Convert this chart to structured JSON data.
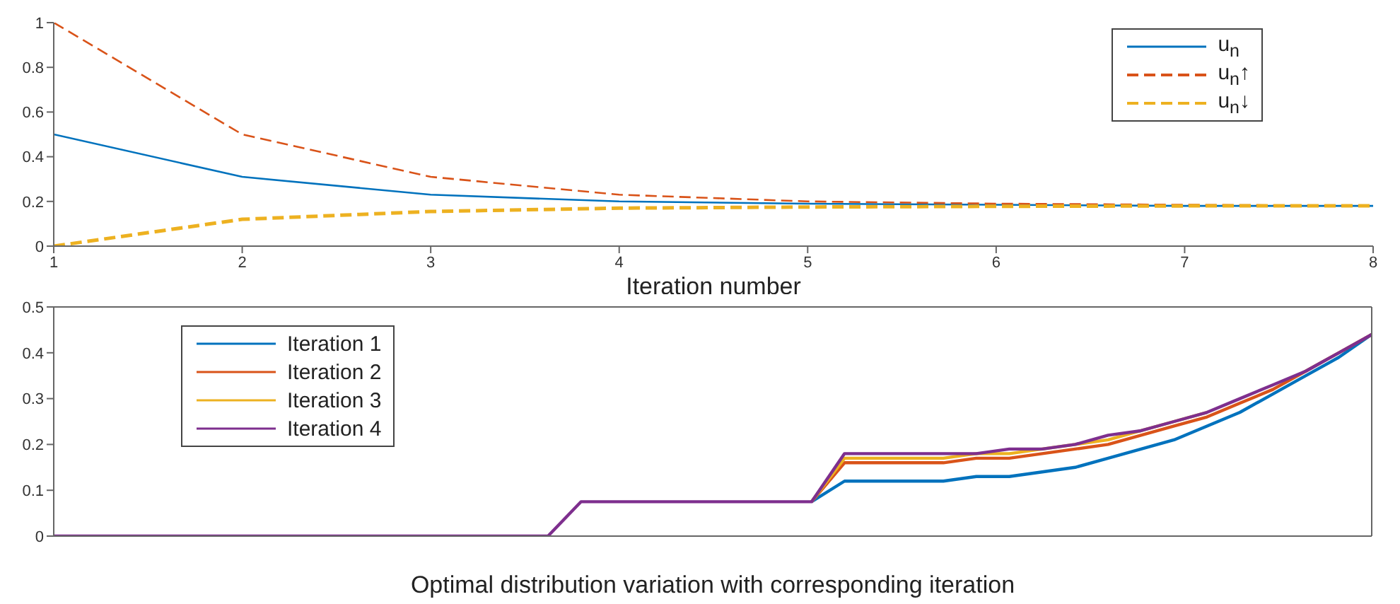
{
  "chart_data": [
    {
      "type": "line",
      "xlabel": "Iteration number",
      "x": [
        1,
        2,
        3,
        4,
        5,
        6,
        7,
        8
      ],
      "xlim": [
        1,
        8
      ],
      "xticks": [
        1,
        2,
        3,
        4,
        5,
        6,
        7,
        8
      ],
      "ylim": [
        0,
        1
      ],
      "yticks": [
        0,
        0.2,
        0.4,
        0.6,
        0.8,
        1
      ],
      "grid": false,
      "legend": "top right",
      "marker": "none",
      "series": [
        {
          "name": "u$_{n}$",
          "color": "#0072bd",
          "line_style": "solid",
          "values": [
            0.5,
            0.31,
            0.23,
            0.2,
            0.19,
            0.185,
            0.18,
            0.18
          ]
        },
        {
          "name": "u$_{n}$↑",
          "color": "#d95319",
          "line_style": "dashed",
          "values": [
            1,
            0.5,
            0.31,
            0.23,
            0.2,
            0.19,
            0.185,
            0.18
          ]
        },
        {
          "name": "u$_{n}$↓",
          "color": "#edb120",
          "line_style": "dashed",
          "values": [
            0,
            0.12,
            0.155,
            0.17,
            0.175,
            0.178,
            0.18,
            0.18
          ]
        }
      ]
    },
    {
      "type": "line",
      "xlabel": "Optimal distribution variation with corresponding iteration",
      "categories": [
        null,
        null,
        null,
        null,
        null,
        null,
        null,
        null,
        null,
        null,
        null,
        null,
        null,
        null,
        null,
        null,
        null,
        null,
        null,
        null,
        null,
        null,
        null,
        null,
        null,
        null,
        null,
        null,
        null,
        null,
        null,
        null,
        null,
        null,
        null,
        null,
        null,
        null,
        null,
        null,
        null
      ],
      "ylim": [
        0,
        0.5
      ],
      "yticks": [
        0,
        0.1,
        0.2,
        0.3,
        0.4,
        0.5
      ],
      "tick_labels": "y",
      "grid": false,
      "legend": "top left",
      "marker": "none",
      "series": [
        {
          "name": "Iteration 1",
          "color": "#0072bd",
          "values": [
            null,
            null,
            null,
            null,
            null,
            null,
            null,
            null,
            null,
            null,
            null,
            null,
            null,
            null,
            null,
            null,
            null,
            null,
            null,
            null,
            null,
            null,
            null,
            0.075,
            0.12,
            0.12,
            0.12,
            0.12,
            0.13,
            0.13,
            0.14,
            0.15,
            0.17,
            0.19,
            0.21,
            0.24,
            0.27,
            0.31,
            0.35,
            0.39,
            0.44
          ]
        },
        {
          "name": "Iteration 2",
          "color": "#d95319",
          "values": [
            null,
            null,
            null,
            null,
            null,
            null,
            null,
            null,
            null,
            null,
            null,
            null,
            null,
            null,
            null,
            null,
            null,
            null,
            null,
            null,
            null,
            null,
            null,
            0.075,
            0.16,
            0.16,
            0.16,
            0.16,
            0.17,
            0.17,
            0.18,
            0.19,
            0.2,
            0.22,
            0.24,
            0.26,
            0.29,
            0.32,
            0.36,
            0.4,
            0.44
          ]
        },
        {
          "name": "Iteration 3",
          "color": "#edb120",
          "values": [
            null,
            null,
            null,
            null,
            null,
            null,
            null,
            null,
            null,
            null,
            null,
            null,
            null,
            null,
            null,
            null,
            null,
            null,
            null,
            null,
            null,
            null,
            null,
            0.075,
            0.17,
            0.17,
            0.17,
            0.17,
            0.18,
            0.18,
            0.19,
            0.2,
            0.21,
            0.23,
            0.25,
            0.27,
            null,
            null,
            null,
            null,
            null
          ]
        },
        {
          "name": "Iteration 4",
          "color": "#7e2f8e",
          "values": [
            0,
            0,
            0,
            0,
            0,
            0,
            0,
            0,
            0,
            0,
            0,
            0,
            0,
            0,
            0,
            0,
            0.075,
            0.075,
            0.075,
            0.075,
            0.075,
            0.075,
            0.075,
            0.075,
            0.18,
            0.18,
            0.18,
            0.18,
            0.18,
            0.19,
            0.19,
            0.2,
            0.22,
            0.23,
            0.25,
            0.27,
            0.3,
            0.33,
            0.36,
            0.4,
            0.44
          ]
        }
      ]
    }
  ]
}
